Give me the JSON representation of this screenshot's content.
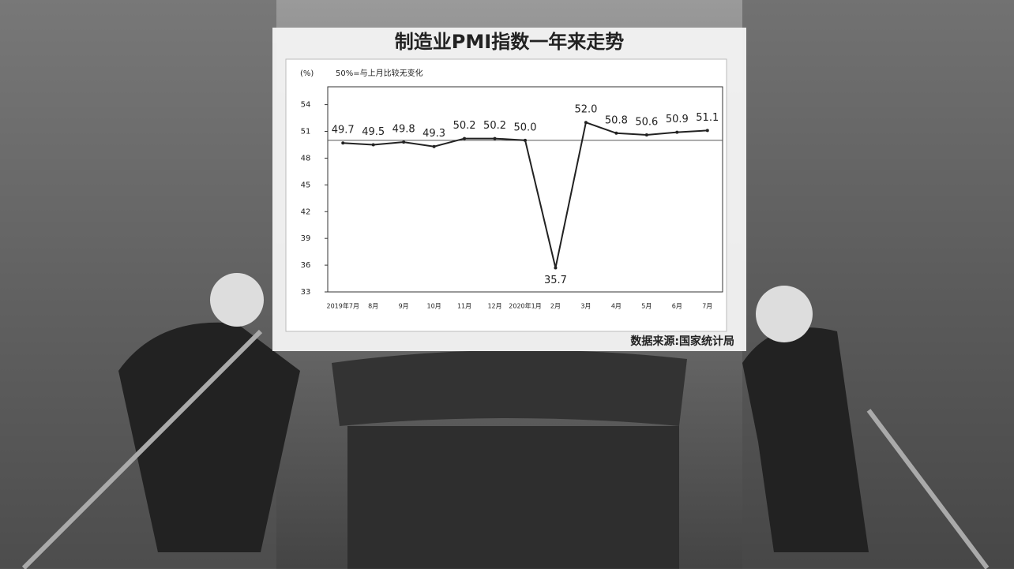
{
  "chart_data": {
    "type": "line",
    "title": "制造业PMI指数一年来走势",
    "y_label": "(%)",
    "reference_line": {
      "value": 50,
      "label": "50%=与上月比较无变化"
    },
    "source": "数据来源:国家统计局",
    "categories": [
      "2019年7月",
      "8月",
      "9月",
      "10月",
      "11月",
      "12月",
      "2020年1月",
      "2月",
      "3月",
      "4月",
      "5月",
      "6月",
      "7月"
    ],
    "series": [
      {
        "name": "制造业PMI",
        "color": "#222222",
        "values": [
          49.7,
          49.5,
          49.8,
          49.3,
          50.2,
          50.2,
          50.0,
          35.7,
          52.0,
          50.8,
          50.6,
          50.9,
          51.1
        ],
        "value_labels": [
          "49.7",
          "49.5",
          "49.8",
          "49.3",
          "50.2",
          "50.2",
          "50.0",
          "35.7",
          "52.0",
          "50.8",
          "50.6",
          "50.9",
          "51.1"
        ]
      }
    ],
    "ylim": [
      33,
      56
    ],
    "yticks": [
      33,
      36,
      39,
      42,
      45,
      48,
      51,
      54
    ]
  }
}
